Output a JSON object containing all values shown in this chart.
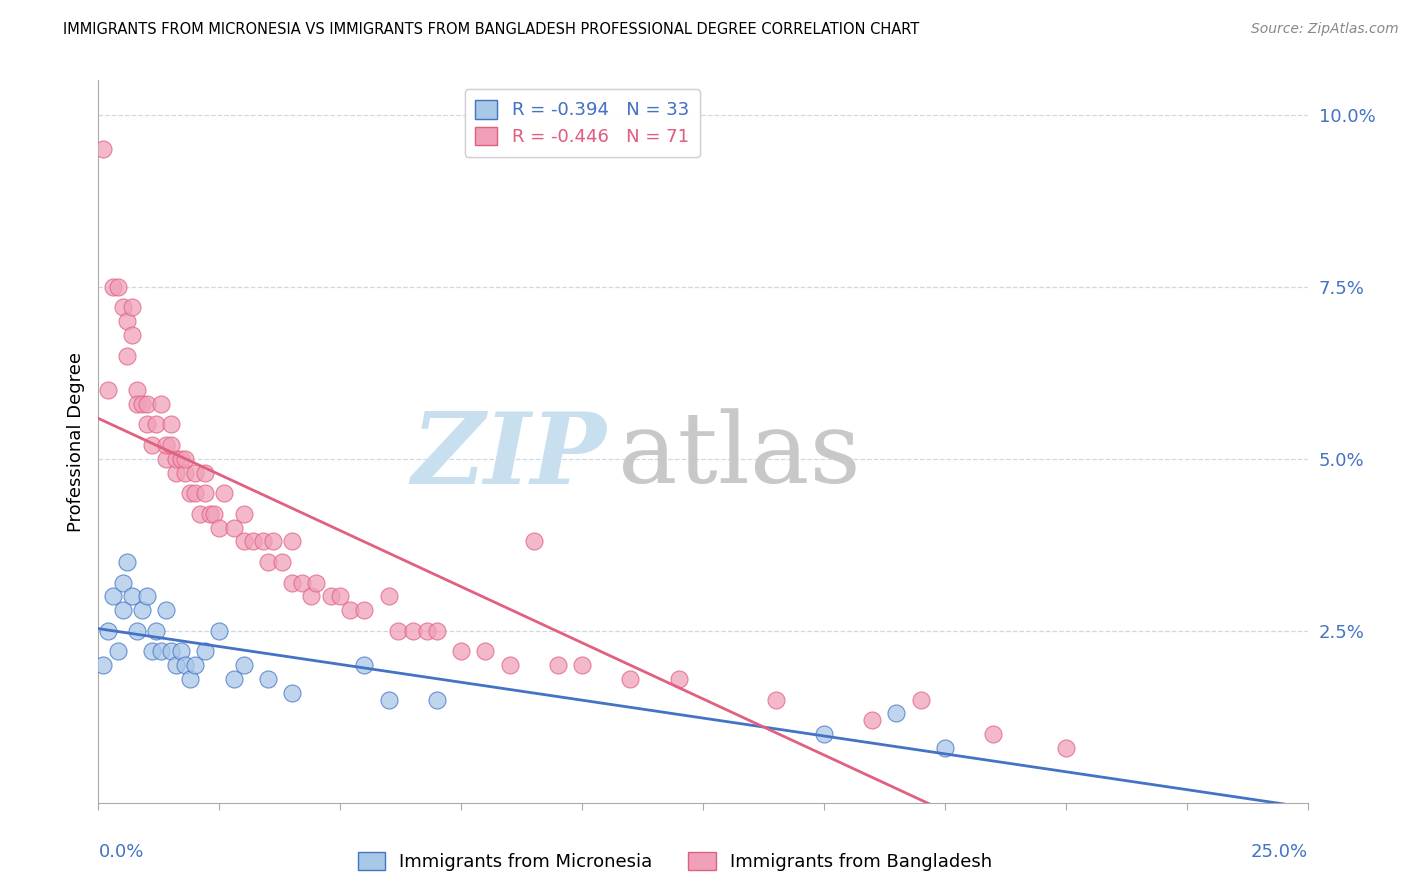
{
  "title": "IMMIGRANTS FROM MICRONESIA VS IMMIGRANTS FROM BANGLADESH PROFESSIONAL DEGREE CORRELATION CHART",
  "source": "Source: ZipAtlas.com",
  "ylabel": "Professional Degree",
  "legend_label_blue": "Immigrants from Micronesia",
  "legend_label_pink": "Immigrants from Bangladesh",
  "R_blue": -0.394,
  "N_blue": 33,
  "R_pink": -0.446,
  "N_pink": 71,
  "color_blue": "#a8c8e8",
  "color_pink": "#f0a0b8",
  "line_color_blue": "#4472c4",
  "line_color_pink": "#e06080",
  "text_color_axis": "#4472c4",
  "grid_color": "#d0d8e8",
  "blue_x": [
    0.001,
    0.002,
    0.003,
    0.004,
    0.005,
    0.005,
    0.006,
    0.007,
    0.008,
    0.009,
    0.01,
    0.011,
    0.012,
    0.013,
    0.014,
    0.015,
    0.016,
    0.017,
    0.018,
    0.019,
    0.02,
    0.022,
    0.025,
    0.028,
    0.03,
    0.035,
    0.04,
    0.055,
    0.06,
    0.07,
    0.15,
    0.165,
    0.175
  ],
  "blue_y": [
    0.02,
    0.025,
    0.03,
    0.022,
    0.028,
    0.032,
    0.035,
    0.03,
    0.025,
    0.028,
    0.03,
    0.022,
    0.025,
    0.022,
    0.028,
    0.022,
    0.02,
    0.022,
    0.02,
    0.018,
    0.02,
    0.022,
    0.025,
    0.018,
    0.02,
    0.018,
    0.016,
    0.02,
    0.015,
    0.015,
    0.01,
    0.013,
    0.008
  ],
  "pink_x": [
    0.001,
    0.002,
    0.003,
    0.004,
    0.005,
    0.006,
    0.006,
    0.007,
    0.007,
    0.008,
    0.008,
    0.009,
    0.01,
    0.01,
    0.011,
    0.012,
    0.013,
    0.014,
    0.014,
    0.015,
    0.015,
    0.016,
    0.016,
    0.017,
    0.018,
    0.018,
    0.019,
    0.02,
    0.02,
    0.021,
    0.022,
    0.022,
    0.023,
    0.024,
    0.025,
    0.026,
    0.028,
    0.03,
    0.03,
    0.032,
    0.034,
    0.035,
    0.036,
    0.038,
    0.04,
    0.04,
    0.042,
    0.044,
    0.045,
    0.048,
    0.05,
    0.052,
    0.055,
    0.06,
    0.062,
    0.065,
    0.068,
    0.07,
    0.075,
    0.08,
    0.085,
    0.09,
    0.095,
    0.1,
    0.11,
    0.12,
    0.14,
    0.16,
    0.17,
    0.185,
    0.2
  ],
  "pink_y": [
    0.095,
    0.06,
    0.075,
    0.075,
    0.072,
    0.07,
    0.065,
    0.072,
    0.068,
    0.06,
    0.058,
    0.058,
    0.055,
    0.058,
    0.052,
    0.055,
    0.058,
    0.05,
    0.052,
    0.052,
    0.055,
    0.048,
    0.05,
    0.05,
    0.048,
    0.05,
    0.045,
    0.048,
    0.045,
    0.042,
    0.048,
    0.045,
    0.042,
    0.042,
    0.04,
    0.045,
    0.04,
    0.038,
    0.042,
    0.038,
    0.038,
    0.035,
    0.038,
    0.035,
    0.038,
    0.032,
    0.032,
    0.03,
    0.032,
    0.03,
    0.03,
    0.028,
    0.028,
    0.03,
    0.025,
    0.025,
    0.025,
    0.025,
    0.022,
    0.022,
    0.02,
    0.038,
    0.02,
    0.02,
    0.018,
    0.018,
    0.015,
    0.012,
    0.015,
    0.01,
    0.008
  ]
}
